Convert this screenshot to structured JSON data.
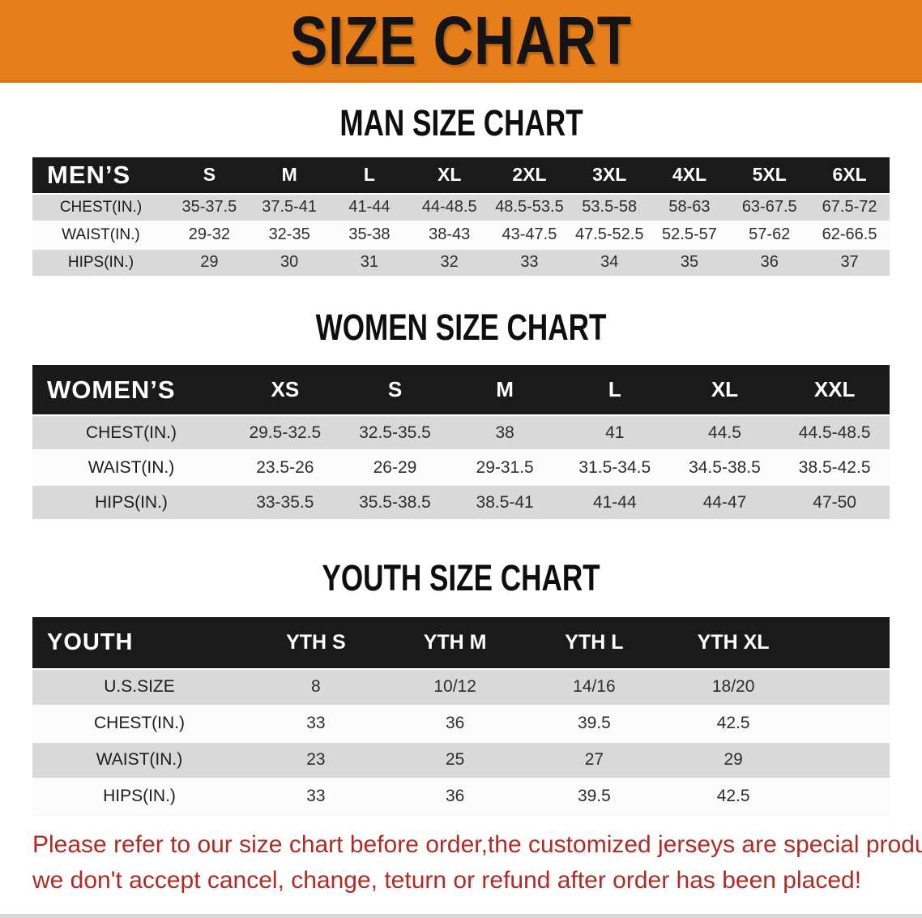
{
  "banner": {
    "title": "SIZE CHART"
  },
  "colors": {
    "banner_bg": "#e67e1a",
    "header_bar": "#1a1a1a",
    "row_gray": "#d9d9d9",
    "row_white": "#fcfcfc",
    "disclaimer_red": "#b22a24"
  },
  "sections": [
    {
      "heading": "MAN SIZE CHART",
      "table": {
        "name": "mens",
        "header_label": "MEN’S",
        "columns": [
          "S",
          "M",
          "L",
          "XL",
          "2XL",
          "3XL",
          "4XL",
          "5XL",
          "6XL"
        ],
        "rows": [
          {
            "label": "CHEST(IN.)",
            "values": [
              "35-37.5",
              "37.5-41",
              "41-44",
              "44-48.5",
              "48.5-53.5",
              "53.5-58",
              "58-63",
              "63-67.5",
              "67.5-72"
            ]
          },
          {
            "label": "WAIST(IN.)",
            "values": [
              "29-32",
              "32-35",
              "35-38",
              "38-43",
              "43-47.5",
              "47.5-52.5",
              "52.5-57",
              "57-62",
              "62-66.5"
            ]
          },
          {
            "label": "HIPS(IN.)",
            "values": [
              "29",
              "30",
              "31",
              "32",
              "33",
              "34",
              "35",
              "36",
              "37"
            ]
          }
        ]
      }
    },
    {
      "heading": "WOMEN SIZE CHART",
      "table": {
        "name": "womens",
        "header_label": "WOMEN’S",
        "columns": [
          "XS",
          "S",
          "M",
          "L",
          "XL",
          "XXL"
        ],
        "rows": [
          {
            "label": "CHEST(IN.)",
            "values": [
              "29.5-32.5",
              "32.5-35.5",
              "38",
              "41",
              "44.5",
              "44.5-48.5"
            ]
          },
          {
            "label": "WAIST(IN.)",
            "values": [
              "23.5-26",
              "26-29",
              "29-31.5",
              "31.5-34.5",
              "34.5-38.5",
              "38.5-42.5"
            ]
          },
          {
            "label": "HIPS(IN.)",
            "values": [
              "33-35.5",
              "35.5-38.5",
              "38.5-41",
              "41-44",
              "44-47",
              "47-50"
            ]
          }
        ]
      }
    },
    {
      "heading": "YOUTH SIZE CHART",
      "table": {
        "name": "youth",
        "header_label": "YOUTH",
        "columns": [
          "YTH S",
          "YTH M",
          "YTH L",
          "YTH XL"
        ],
        "rows": [
          {
            "label": "U.S.SIZE",
            "values": [
              "8",
              "10/12",
              "14/16",
              "18/20"
            ]
          },
          {
            "label": "CHEST(IN.)",
            "values": [
              "33",
              "36",
              "39.5",
              "42.5"
            ]
          },
          {
            "label": "WAIST(IN.)",
            "values": [
              "23",
              "25",
              "27",
              "29"
            ]
          },
          {
            "label": "HIPS(IN.)",
            "values": [
              "33",
              "36",
              "39.5",
              "42.5"
            ]
          }
        ]
      }
    }
  ],
  "disclaimer": {
    "line1": "Please refer to our size chart before order,the customized jerseys are special products,",
    "line2": "we don't accept cancel, change, teturn or refund after order has been placed!"
  }
}
